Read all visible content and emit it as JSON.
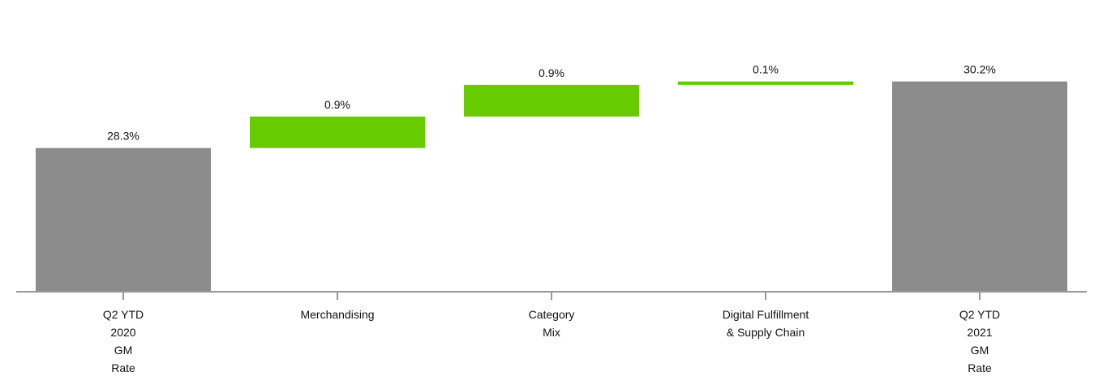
{
  "chart_data": {
    "type": "waterfall",
    "categories": [
      "Q2 YTD\n2020\nGM\nRate",
      "Merchandising",
      "Category\nMix",
      "Digital Fulfillment\n& Supply Chain",
      "Q2 YTD\n2021\nGM\nRate"
    ],
    "values": [
      28.3,
      0.9,
      0.9,
      0.1,
      30.2
    ],
    "value_labels": [
      "28.3%",
      "0.9%",
      "0.9%",
      "0.1%",
      "30.2%"
    ],
    "totals": [
      true,
      false,
      false,
      false,
      true
    ],
    "total_color": "#8c8c8c",
    "increase_color": "#66cc00",
    "ylim": [
      24.2,
      31.6
    ]
  }
}
